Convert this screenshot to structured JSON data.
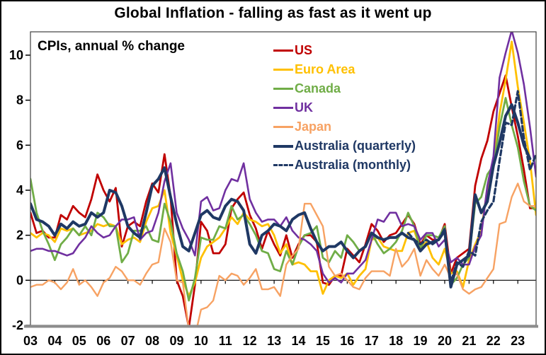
{
  "chart_data": {
    "type": "line",
    "title": "Global Inflation - falling as fast as it went up",
    "annotation": "CPIs, annual % change",
    "grid": false,
    "legend_position": "inside-top-right",
    "xlim": [
      2003,
      2023.75
    ],
    "ylim": [
      -2,
      11.05
    ],
    "x_start": 2003,
    "x_step": 0.25,
    "x_tick_labels": [
      "03",
      "04",
      "05",
      "06",
      "07",
      "08",
      "09",
      "10",
      "11",
      "12",
      "13",
      "14",
      "15",
      "16",
      "17",
      "18",
      "19",
      "20",
      "21",
      "22",
      "23"
    ],
    "y_ticks": [
      -2,
      0,
      2,
      4,
      6,
      8,
      10
    ],
    "axis_colors": {
      "zero_line": "#000000",
      "plot_border": "#404040",
      "baseline": "#8C8C8C"
    },
    "series": [
      {
        "name": "US",
        "color": "#C00000",
        "style": "solid",
        "width": 2.8,
        "values": [
          3.0,
          2.1,
          2.2,
          1.9,
          1.9,
          2.9,
          2.7,
          3.3,
          3.0,
          2.8,
          3.6,
          4.7,
          4.0,
          3.5,
          4.1,
          1.5,
          2.4,
          2.6,
          2.4,
          3.5,
          4.3,
          3.9,
          5.6,
          3.7,
          0.0,
          -0.7,
          -2.1,
          -0.2,
          2.6,
          2.2,
          1.2,
          1.2,
          1.6,
          3.2,
          3.6,
          3.9,
          2.9,
          2.3,
          1.4,
          2.2,
          1.6,
          1.1,
          2.0,
          1.0,
          1.6,
          2.0,
          2.0,
          1.7,
          -0.1,
          -0.2,
          0.2,
          0.2,
          1.4,
          1.1,
          0.8,
          1.6,
          2.5,
          2.2,
          1.7,
          2.0,
          2.1,
          2.5,
          2.9,
          2.5,
          1.6,
          2.0,
          1.8,
          1.8,
          2.5,
          0.3,
          1.0,
          1.2,
          1.4,
          4.2,
          5.4,
          6.2,
          7.5,
          8.3,
          9.1,
          7.7,
          6.4,
          4.9,
          3.2,
          3.2
        ]
      },
      {
        "name": "Euro Area",
        "color": "#FFC000",
        "style": "solid",
        "width": 2.8,
        "values": [
          2.1,
          1.9,
          2.1,
          2.0,
          1.7,
          2.3,
          2.2,
          2.3,
          2.0,
          2.1,
          2.2,
          2.5,
          2.4,
          2.5,
          2.4,
          1.6,
          1.8,
          1.9,
          1.7,
          2.6,
          3.2,
          3.3,
          4.0,
          2.1,
          1.1,
          0.0,
          -0.7,
          -0.1,
          1.0,
          1.5,
          1.7,
          1.9,
          2.3,
          2.8,
          2.5,
          3.0,
          2.7,
          2.6,
          2.4,
          2.5,
          2.0,
          1.2,
          1.6,
          0.7,
          0.8,
          0.7,
          0.4,
          0.4,
          -0.6,
          0.0,
          0.2,
          0.1,
          0.3,
          -0.2,
          0.2,
          0.5,
          1.8,
          1.9,
          1.5,
          1.4,
          1.3,
          1.3,
          2.1,
          2.2,
          1.4,
          1.7,
          1.0,
          0.7,
          1.4,
          0.3,
          0.4,
          -0.3,
          0.9,
          1.6,
          2.2,
          4.1,
          5.1,
          7.4,
          8.9,
          10.6,
          8.6,
          7.0,
          5.3,
          2.9
        ]
      },
      {
        "name": "Canada",
        "color": "#70AD47",
        "style": "solid",
        "width": 2.8,
        "values": [
          4.5,
          3.0,
          2.2,
          1.6,
          0.9,
          1.6,
          1.9,
          2.3,
          2.0,
          2.4,
          2.0,
          3.0,
          2.8,
          2.4,
          2.4,
          0.8,
          1.2,
          2.2,
          2.2,
          2.4,
          1.8,
          1.7,
          3.4,
          2.6,
          1.2,
          0.4,
          -0.9,
          0.1,
          1.9,
          1.8,
          1.8,
          2.4,
          2.3,
          3.3,
          2.7,
          2.9,
          2.5,
          2.0,
          1.3,
          1.2,
          0.5,
          0.4,
          1.3,
          0.7,
          1.5,
          2.0,
          2.1,
          2.4,
          1.0,
          0.8,
          1.3,
          1.0,
          2.0,
          1.7,
          1.3,
          1.5,
          2.1,
          1.6,
          1.2,
          1.4,
          1.7,
          2.2,
          3.0,
          2.4,
          1.4,
          2.0,
          2.0,
          1.9,
          2.4,
          -0.2,
          0.1,
          0.7,
          1.0,
          3.4,
          3.7,
          4.7,
          5.1,
          6.8,
          8.1,
          6.9,
          5.9,
          4.4,
          3.3,
          3.1
        ]
      },
      {
        "name": "UK",
        "color": "#7030A0",
        "style": "solid",
        "width": 2.6,
        "values": [
          1.3,
          1.4,
          1.4,
          1.3,
          1.3,
          1.2,
          1.1,
          1.2,
          1.6,
          1.9,
          2.4,
          2.1,
          1.9,
          2.0,
          2.4,
          2.7,
          2.7,
          2.8,
          1.8,
          2.1,
          2.2,
          3.0,
          4.4,
          5.2,
          3.0,
          2.3,
          1.8,
          1.1,
          3.5,
          3.7,
          3.1,
          3.2,
          4.0,
          4.5,
          4.4,
          5.2,
          3.6,
          3.0,
          2.6,
          2.7,
          2.7,
          2.4,
          2.8,
          2.2,
          1.9,
          1.8,
          1.6,
          1.3,
          0.3,
          -0.1,
          0.1,
          -0.1,
          0.3,
          0.3,
          0.6,
          0.9,
          1.8,
          2.7,
          2.6,
          3.0,
          3.0,
          2.4,
          2.5,
          2.4,
          1.8,
          2.1,
          2.1,
          1.5,
          1.8,
          0.8,
          1.0,
          0.7,
          0.7,
          1.5,
          2.0,
          4.2,
          5.5,
          9.0,
          10.1,
          11.1,
          10.1,
          8.7,
          6.8,
          4.6
        ]
      },
      {
        "name": "Japan",
        "color": "#F7A263",
        "style": "solid",
        "width": 2.4,
        "values": [
          -0.3,
          -0.2,
          -0.2,
          0.0,
          -0.1,
          -0.4,
          -0.1,
          0.5,
          -0.2,
          0.0,
          -0.3,
          -0.7,
          -0.1,
          0.1,
          0.6,
          0.4,
          0.0,
          0.0,
          -0.2,
          0.3,
          0.7,
          0.8,
          2.3,
          1.7,
          0.0,
          -0.1,
          -2.2,
          -2.5,
          -1.3,
          -1.2,
          -0.9,
          0.2,
          0.0,
          0.3,
          0.2,
          -0.2,
          0.1,
          0.5,
          -0.4,
          -0.4,
          -0.3,
          -0.7,
          0.7,
          1.1,
          1.4,
          3.4,
          3.4,
          2.9,
          2.4,
          0.6,
          0.2,
          0.3,
          0.0,
          -0.3,
          -0.4,
          0.1,
          0.4,
          0.4,
          0.4,
          0.2,
          1.4,
          0.6,
          0.9,
          1.4,
          0.2,
          0.9,
          0.5,
          0.2,
          0.7,
          0.1,
          0.3,
          -0.4,
          -0.6,
          -0.4,
          -0.3,
          0.1,
          0.5,
          2.5,
          2.6,
          3.7,
          4.3,
          3.5,
          3.3,
          3.3
        ]
      },
      {
        "name": "Australia (quarterly)",
        "color": "#1F3864",
        "style": "solid",
        "width": 4,
        "values": [
          3.4,
          2.7,
          2.6,
          2.4,
          2.0,
          2.5,
          2.3,
          2.6,
          2.4,
          2.5,
          3.0,
          2.8,
          3.0,
          4.0,
          3.9,
          3.3,
          2.4,
          2.1,
          1.9,
          3.0,
          4.2,
          4.5,
          5.0,
          3.7,
          2.5,
          1.5,
          1.3,
          2.1,
          2.9,
          3.1,
          2.8,
          2.7,
          3.3,
          3.6,
          3.5,
          3.1,
          1.6,
          1.2,
          2.0,
          2.2,
          2.5,
          2.4,
          2.2,
          2.7,
          2.9,
          3.0,
          2.3,
          1.7,
          1.3,
          1.5,
          1.5,
          1.7,
          1.3,
          1.0,
          1.3,
          1.5,
          2.1,
          1.9,
          1.8,
          1.9,
          1.9,
          2.1,
          1.9,
          1.8,
          1.3,
          1.6,
          1.7,
          1.8,
          2.2,
          -0.3,
          0.7,
          0.9,
          1.1,
          3.8,
          3.0,
          3.5,
          5.1,
          6.1,
          7.3,
          7.8,
          7.0,
          6.0,
          5.4,
          null
        ]
      },
      {
        "name": "Australia (monthly)",
        "color": "#1F3864",
        "style": "dashed",
        "width": 3.2,
        "values": [
          null,
          null,
          null,
          null,
          null,
          null,
          null,
          null,
          null,
          null,
          null,
          null,
          null,
          null,
          null,
          null,
          null,
          null,
          null,
          null,
          null,
          null,
          null,
          null,
          null,
          null,
          null,
          null,
          null,
          null,
          null,
          null,
          null,
          null,
          null,
          null,
          null,
          null,
          null,
          null,
          null,
          null,
          null,
          null,
          null,
          null,
          null,
          null,
          null,
          null,
          null,
          null,
          null,
          null,
          null,
          null,
          null,
          null,
          null,
          null,
          null,
          null,
          2.1,
          1.8,
          1.6,
          1.8,
          1.6,
          1.8,
          2.3,
          -0.1,
          0.8,
          0.6,
          1.3,
          1.1,
          2.6,
          3.1,
          3.5,
          5.3,
          7.0,
          6.9,
          8.4,
          6.3,
          4.9,
          5.6
        ]
      }
    ]
  }
}
